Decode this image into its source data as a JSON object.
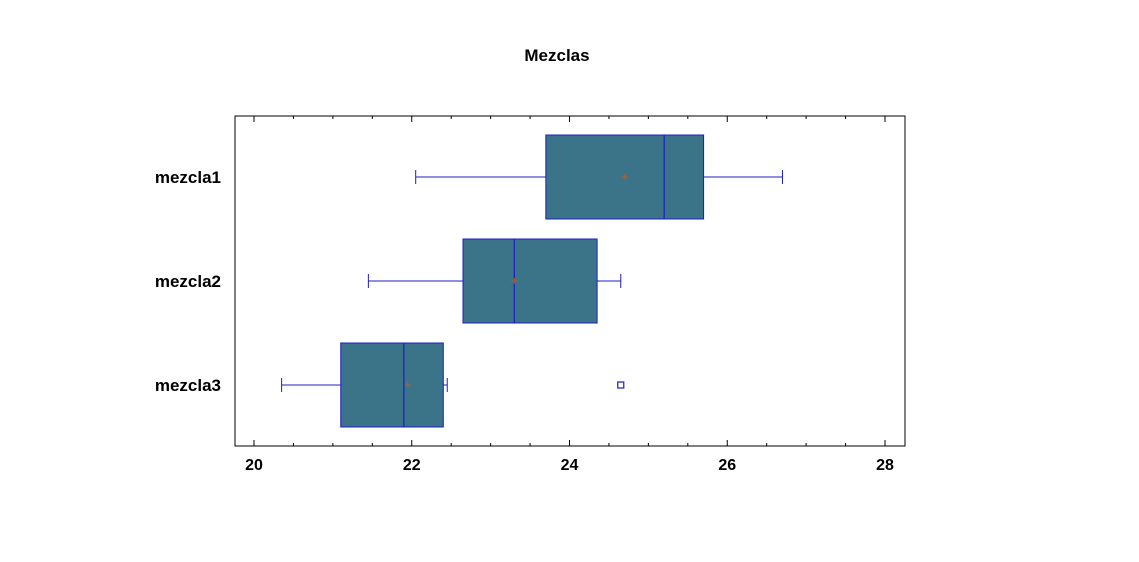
{
  "chart_data": {
    "type": "boxplot",
    "orientation": "horizontal",
    "title": "Mezclas",
    "xlabel": "",
    "ylabel": "",
    "xlim": [
      20,
      28
    ],
    "x_ticks": [
      20,
      22,
      24,
      26,
      28
    ],
    "grid": false,
    "legend": "none",
    "categories": [
      "mezcla1",
      "mezcla2",
      "mezcla3"
    ],
    "series": [
      {
        "category": "mezcla1",
        "min": 22.05,
        "q1": 23.7,
        "median": 25.2,
        "q3": 25.7,
        "max": 26.7,
        "mean": 24.7,
        "outliers": []
      },
      {
        "category": "mezcla2",
        "min": 21.45,
        "q1": 22.65,
        "median": 23.3,
        "q3": 24.35,
        "max": 24.65,
        "mean": 23.3,
        "outliers": []
      },
      {
        "category": "mezcla3",
        "min": 20.35,
        "q1": 21.1,
        "median": 21.9,
        "q3": 22.4,
        "max": 22.45,
        "mean": 21.95,
        "outliers": [
          24.65
        ]
      }
    ],
    "colors": {
      "box_fill": "#3b7488",
      "box_stroke": "#1c1cc8",
      "whisker": "#1c1cc8",
      "mean_marker": "#b85a28",
      "outlier": "#1c1cc8",
      "frame": "#000000"
    }
  }
}
